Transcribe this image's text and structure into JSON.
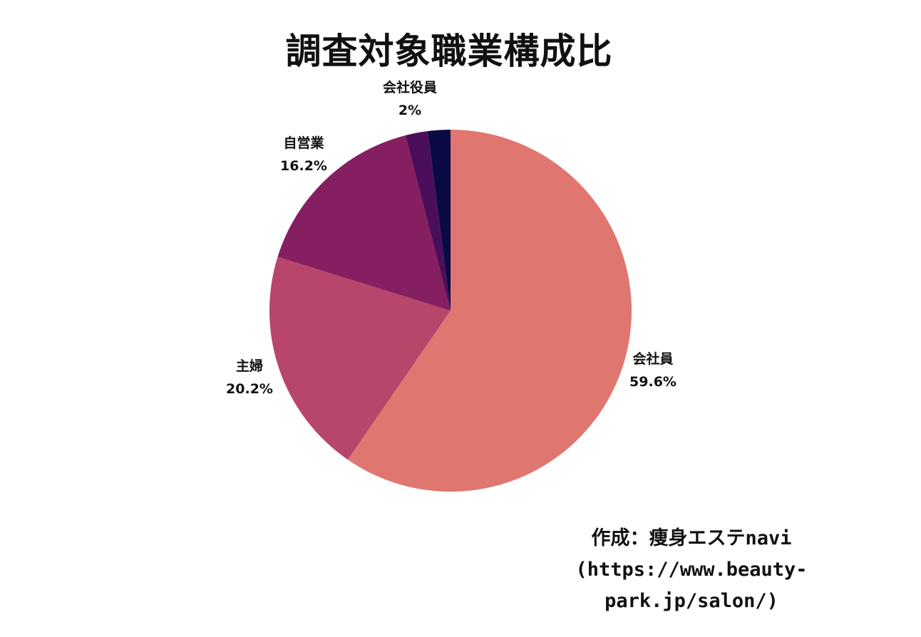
{
  "chart_data": {
    "type": "pie",
    "title": "調査対象職業構成比",
    "slices": [
      {
        "label": "会社員",
        "value_label": "59.6%",
        "value": 59.6,
        "color": "#e07670"
      },
      {
        "label": "主婦",
        "value_label": "20.2%",
        "value": 20.2,
        "color": "#b8456a"
      },
      {
        "label": "自営業",
        "value_label": "16.2%",
        "value": 16.2,
        "color": "#851f62"
      },
      {
        "label": "会社役員",
        "value_label": "2%",
        "value": 2,
        "color": "#4a0f58"
      },
      {
        "value": 2,
        "color": "#0a0a45"
      }
    ],
    "start": "12 o'clock",
    "direction": "clockwise",
    "legend": "none"
  },
  "credit": {
    "line1": "作成：痩身エステnavi",
    "line2": "(https://www.beauty-",
    "line3": "park.jp/salon/)"
  }
}
